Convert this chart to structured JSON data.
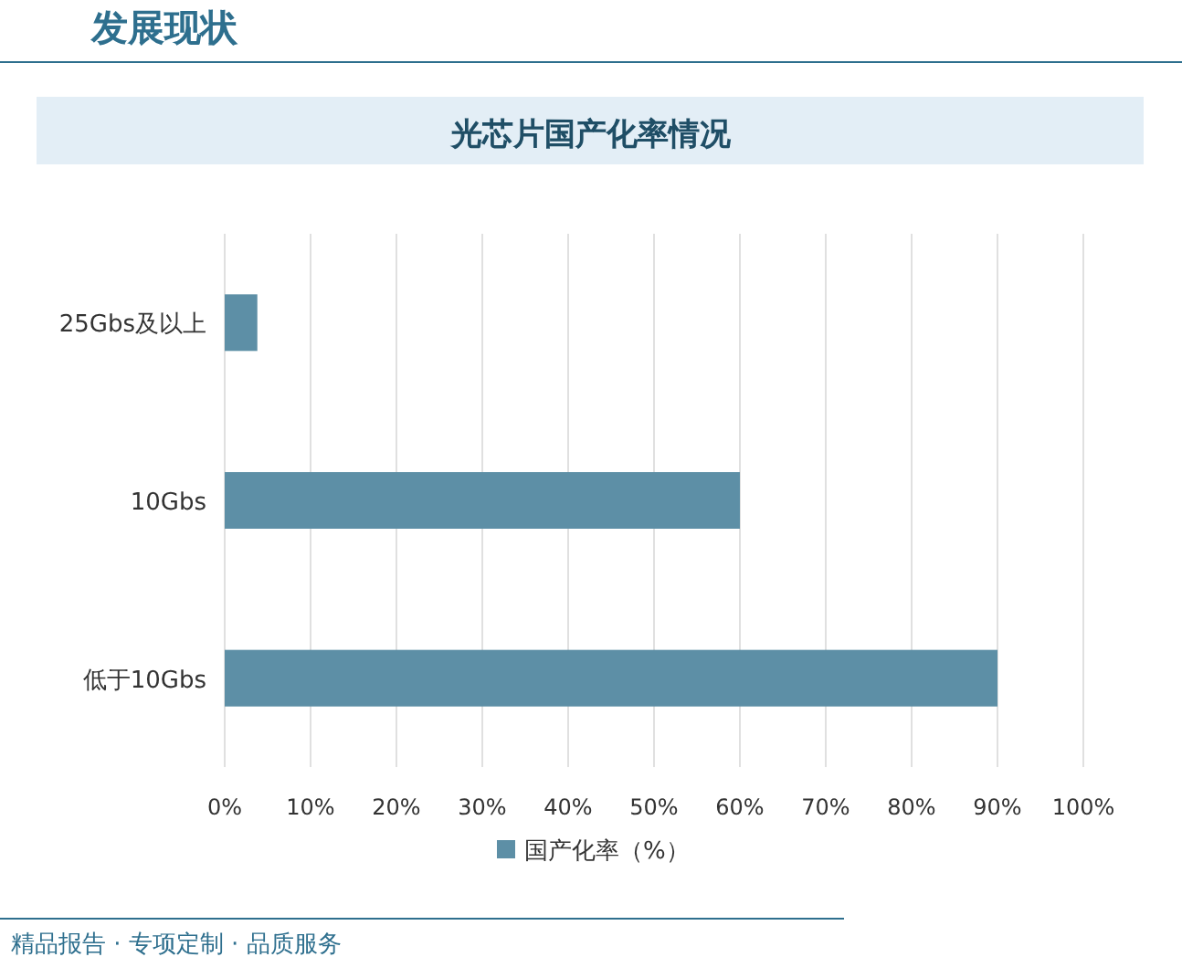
{
  "chart_data": {
    "type": "bar",
    "orientation": "horizontal",
    "title": "光芯片国产化率情况",
    "subtitle": "发展现状",
    "categories": [
      "25Gbs及以上",
      "10Gbs",
      "低于10Gbs"
    ],
    "series": [
      {
        "name": "国产化率（%）",
        "color": "#5d8fa6",
        "values": [
          3.8,
          60,
          90
        ]
      }
    ],
    "xlim": [
      0,
      100
    ],
    "xticks": [
      {
        "value": 0,
        "label": "0%"
      },
      {
        "value": 10,
        "label": "10%"
      },
      {
        "value": 20,
        "label": "20%"
      },
      {
        "value": 30,
        "label": "30%"
      },
      {
        "value": 40,
        "label": "40%"
      },
      {
        "value": 50,
        "label": "50%"
      },
      {
        "value": 60,
        "label": "60%"
      },
      {
        "value": 70,
        "label": "70%"
      },
      {
        "value": 80,
        "label": "80%"
      },
      {
        "value": 90,
        "label": "90%"
      },
      {
        "value": 100,
        "label": "100%"
      }
    ],
    "grid": "x",
    "legend": "bottom",
    "annotations": [
      "精品报告 · 专项定制 · 品质服务"
    ]
  }
}
